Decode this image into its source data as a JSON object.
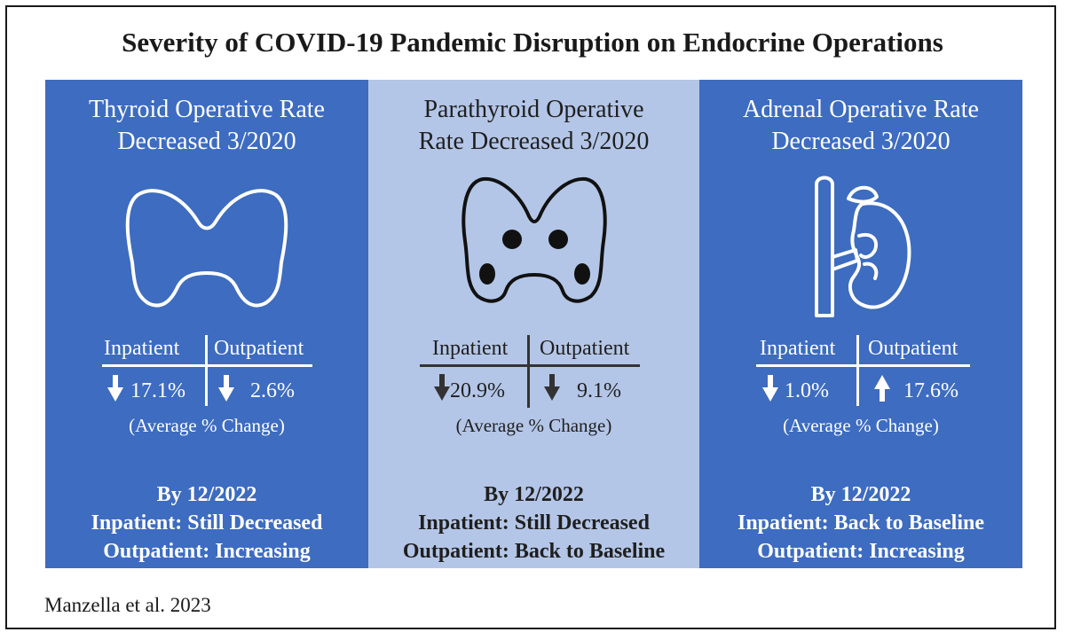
{
  "title": "Severity of COVID-19 Pandemic Disruption on Endocrine Operations",
  "colors": {
    "dark_panel": "#3d6cc0",
    "light_panel": "#b4c6e7",
    "text_dark": "#1f1f1f",
    "text_light": "#ffffff"
  },
  "panels": [
    {
      "title_line1": "Thyroid Operative Rate",
      "title_line2": "Decreased 3/2020",
      "icon": "thyroid-icon",
      "inpatient_label": "Inpatient",
      "outpatient_label": "Outpatient",
      "inpatient_change": "17.1%",
      "inpatient_direction": "down",
      "outpatient_change": "2.6%",
      "outpatient_direction": "down",
      "avg_label": "(Average % Change)",
      "by_date": "By 12/2022",
      "inpatient_status": "Inpatient: Still Decreased",
      "outpatient_status": "Outpatient: Increasing"
    },
    {
      "title_line1": "Parathyroid Operative",
      "title_line2": "Rate Decreased 3/2020",
      "icon": "parathyroid-icon",
      "inpatient_label": "Inpatient",
      "outpatient_label": "Outpatient",
      "inpatient_change": "20.9%",
      "inpatient_direction": "down",
      "outpatient_change": "9.1%",
      "outpatient_direction": "down",
      "avg_label": "(Average % Change)",
      "by_date": "By 12/2022",
      "inpatient_status": "Inpatient: Still Decreased",
      "outpatient_status": "Outpatient: Back to Baseline"
    },
    {
      "title_line1": "Adrenal Operative Rate",
      "title_line2": "Decreased 3/2020",
      "icon": "adrenal-kidney-icon",
      "inpatient_label": "Inpatient",
      "outpatient_label": "Outpatient",
      "inpatient_change": "1.0%",
      "inpatient_direction": "down",
      "outpatient_change": "17.6%",
      "outpatient_direction": "up",
      "avg_label": "(Average % Change)",
      "by_date": "By 12/2022",
      "inpatient_status": "Inpatient: Back to Baseline",
      "outpatient_status": "Outpatient: Increasing"
    }
  ],
  "credit": "Manzella et al. 2023"
}
